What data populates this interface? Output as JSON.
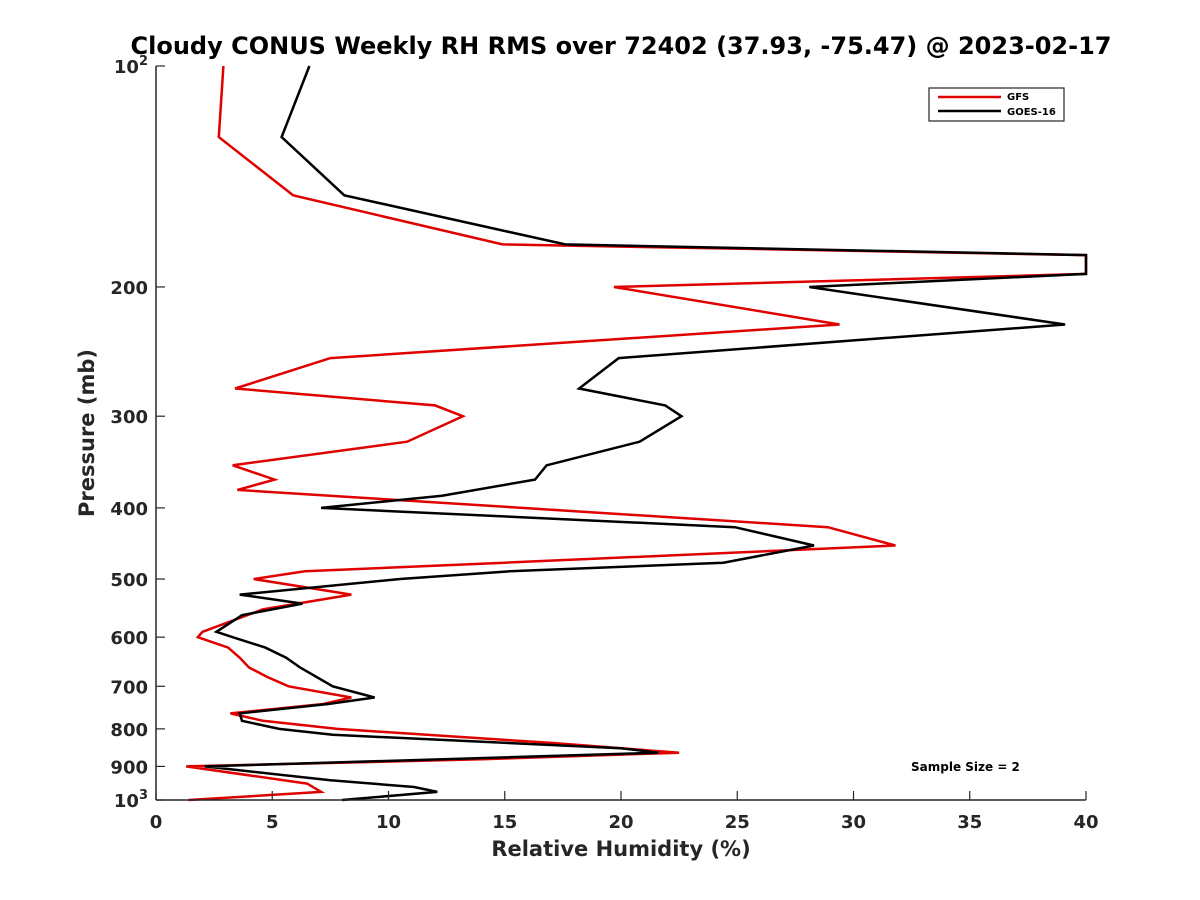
{
  "chart_data": {
    "type": "line",
    "title": "Cloudy CONUS Weekly RH RMS over 72402 (37.93, -75.47) @ 2023-02-17",
    "xlabel": "Relative Humidity (%)",
    "ylabel": "Pressure (mb)",
    "xlim": [
      0,
      40
    ],
    "ylim": [
      1000,
      100
    ],
    "y_scale": "log",
    "y_reversed": true,
    "x_ticks": [
      "0",
      "5",
      "10",
      "15",
      "20",
      "25",
      "30",
      "35",
      "40"
    ],
    "y_ticks": [
      {
        "value": 100,
        "base": "10",
        "exp": "2"
      },
      {
        "value": 200,
        "label": "200"
      },
      {
        "value": 300,
        "label": "300"
      },
      {
        "value": 400,
        "label": "400"
      },
      {
        "value": 500,
        "label": "500"
      },
      {
        "value": 600,
        "label": "600"
      },
      {
        "value": 700,
        "label": "700"
      },
      {
        "value": 800,
        "label": "800"
      },
      {
        "value": 900,
        "label": "900"
      },
      {
        "value": 1000,
        "base": "10",
        "exp": "3"
      }
    ],
    "grid": false,
    "legend_position": "top-right",
    "series": [
      {
        "name": "GFS",
        "color": "#e00000",
        "points": [
          [
            2.9,
            100
          ],
          [
            2.7,
            125
          ],
          [
            5.9,
            150
          ],
          [
            14.9,
            175
          ],
          [
            40,
            181
          ],
          [
            40,
            192
          ],
          [
            19.7,
            200
          ],
          [
            29.4,
            225
          ],
          [
            7.5,
            250
          ],
          [
            3.4,
            275
          ],
          [
            12.0,
            290
          ],
          [
            13.2,
            300
          ],
          [
            10.8,
            325
          ],
          [
            3.3,
            350
          ],
          [
            5.1,
            366
          ],
          [
            3.5,
            378
          ],
          [
            28.9,
            425
          ],
          [
            31.8,
            450
          ],
          [
            15.0,
            475
          ],
          [
            6.4,
            488
          ],
          [
            4.2,
            500
          ],
          [
            8.4,
            525
          ],
          [
            4.6,
            550
          ],
          [
            2.0,
            590
          ],
          [
            1.8,
            600
          ],
          [
            3.1,
            620
          ],
          [
            3.6,
            640
          ],
          [
            4.0,
            660
          ],
          [
            4.8,
            680
          ],
          [
            5.7,
            700
          ],
          [
            8.4,
            725
          ],
          [
            7.2,
            740
          ],
          [
            3.2,
            762
          ],
          [
            4.6,
            780
          ],
          [
            7.8,
            800
          ],
          [
            17.0,
            836
          ],
          [
            22.5,
            862
          ],
          [
            14.0,
            880
          ],
          [
            1.3,
            900
          ],
          [
            6.5,
            950
          ],
          [
            7.1,
            975
          ],
          [
            1.4,
            1000
          ]
        ]
      },
      {
        "name": "GOES-16",
        "color": "#000000",
        "points": [
          [
            6.6,
            100
          ],
          [
            5.4,
            125
          ],
          [
            8.1,
            150
          ],
          [
            17.6,
            175
          ],
          [
            40,
            181
          ],
          [
            40,
            192
          ],
          [
            28.1,
            200
          ],
          [
            39.1,
            225
          ],
          [
            19.9,
            250
          ],
          [
            18.2,
            275
          ],
          [
            21.9,
            290
          ],
          [
            22.6,
            300
          ],
          [
            20.8,
            325
          ],
          [
            16.8,
            350
          ],
          [
            16.3,
            366
          ],
          [
            12.3,
            385
          ],
          [
            7.1,
            400
          ],
          [
            24.9,
            425
          ],
          [
            28.3,
            450
          ],
          [
            24.4,
            475
          ],
          [
            15.2,
            488
          ],
          [
            10.5,
            500
          ],
          [
            3.6,
            525
          ],
          [
            6.3,
            540
          ],
          [
            3.7,
            560
          ],
          [
            2.6,
            590
          ],
          [
            3.3,
            600
          ],
          [
            4.7,
            620
          ],
          [
            5.6,
            640
          ],
          [
            6.2,
            660
          ],
          [
            7.6,
            700
          ],
          [
            9.4,
            725
          ],
          [
            7.4,
            740
          ],
          [
            3.6,
            762
          ],
          [
            3.7,
            780
          ],
          [
            5.3,
            800
          ],
          [
            7.6,
            815
          ],
          [
            20.0,
            850
          ],
          [
            21.6,
            862
          ],
          [
            2.1,
            900
          ],
          [
            7.5,
            940
          ],
          [
            11.1,
            960
          ],
          [
            12.1,
            975
          ],
          [
            8.0,
            1000
          ]
        ]
      }
    ],
    "annotation": "Sample Size = 2"
  }
}
